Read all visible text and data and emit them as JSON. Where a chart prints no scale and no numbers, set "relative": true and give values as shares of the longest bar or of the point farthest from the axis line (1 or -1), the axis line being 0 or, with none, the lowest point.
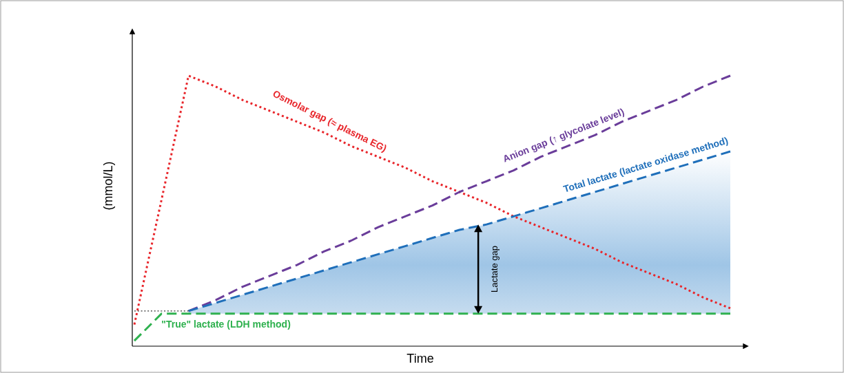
{
  "chart_data": {
    "type": "line",
    "relative": true,
    "xlabel": "Time",
    "ylabel": "(mmol/L)",
    "tick_labels": false,
    "grid": false,
    "legend": false,
    "marker": "none",
    "categories": [
      null,
      null,
      null,
      null,
      null,
      null,
      null,
      null,
      null,
      null,
      null,
      null,
      null,
      null,
      null,
      null,
      null,
      null,
      null,
      null,
      null,
      null,
      null
    ],
    "series": [
      {
        "name": "Osmolar gap (≈ plasma EG)",
        "color": "#e8262b",
        "line_style": "dotted",
        "values": [
          0.08,
          0.54,
          1.0,
          0.96,
          0.91,
          0.87,
          0.83,
          0.79,
          0.74,
          0.7,
          0.66,
          0.61,
          0.57,
          0.53,
          0.48,
          0.44,
          0.4,
          0.36,
          0.31,
          0.27,
          0.23,
          0.18,
          0.14
        ]
      },
      {
        "name": "Anion gap (↑ glycolate level)",
        "color": "#6a3d9a",
        "line_style": "dashed",
        "values": [
          null,
          null,
          0.13,
          0.17,
          0.22,
          0.26,
          0.3,
          0.35,
          0.39,
          0.44,
          0.48,
          0.52,
          0.57,
          0.61,
          0.65,
          0.7,
          0.74,
          0.78,
          0.83,
          0.87,
          0.91,
          0.96,
          1.0
        ]
      },
      {
        "name": "Total lactate (lactate oxidase method)",
        "color": "#1f6fba",
        "line_style": "dashed",
        "values": [
          null,
          null,
          0.13,
          0.16,
          0.19,
          0.22,
          0.25,
          0.28,
          0.31,
          0.34,
          0.37,
          0.4,
          0.43,
          0.45,
          0.48,
          0.51,
          0.54,
          0.57,
          0.6,
          0.63,
          0.66,
          0.69,
          0.72
        ],
        "lower": [
          null,
          null,
          0.12,
          0.12,
          0.12,
          0.12,
          0.12,
          0.12,
          0.12,
          0.12,
          0.12,
          0.12,
          0.12,
          0.12,
          0.12,
          0.12,
          0.12,
          0.12,
          0.12,
          0.12,
          0.12,
          0.12,
          0.12
        ],
        "upper": [
          null,
          null,
          0.13,
          0.16,
          0.19,
          0.22,
          0.25,
          0.28,
          0.31,
          0.34,
          0.37,
          0.4,
          0.43,
          0.45,
          0.48,
          0.51,
          0.54,
          0.57,
          0.6,
          0.63,
          0.66,
          0.69,
          0.72
        ]
      },
      {
        "name": "\"True\" lactate (LDH method)",
        "color": "#2fb14f",
        "line_style": "dashed",
        "values": [
          0.02,
          0.12,
          0.12,
          0.12,
          0.12,
          0.12,
          0.12,
          0.12,
          0.12,
          0.12,
          0.12,
          0.12,
          0.12,
          0.12,
          0.12,
          0.12,
          0.12,
          0.12,
          0.12,
          0.12,
          0.12,
          0.12,
          0.12
        ]
      },
      {
        "color": "#000000",
        "line_style": "dotted",
        "values": [
          0.13,
          0.13,
          0.13,
          null,
          null,
          null,
          null,
          null,
          null,
          null,
          null,
          null,
          null,
          null,
          null,
          null,
          null,
          null,
          null,
          null,
          null,
          null,
          null
        ]
      }
    ],
    "annotations": [
      "Lactate gap"
    ]
  }
}
